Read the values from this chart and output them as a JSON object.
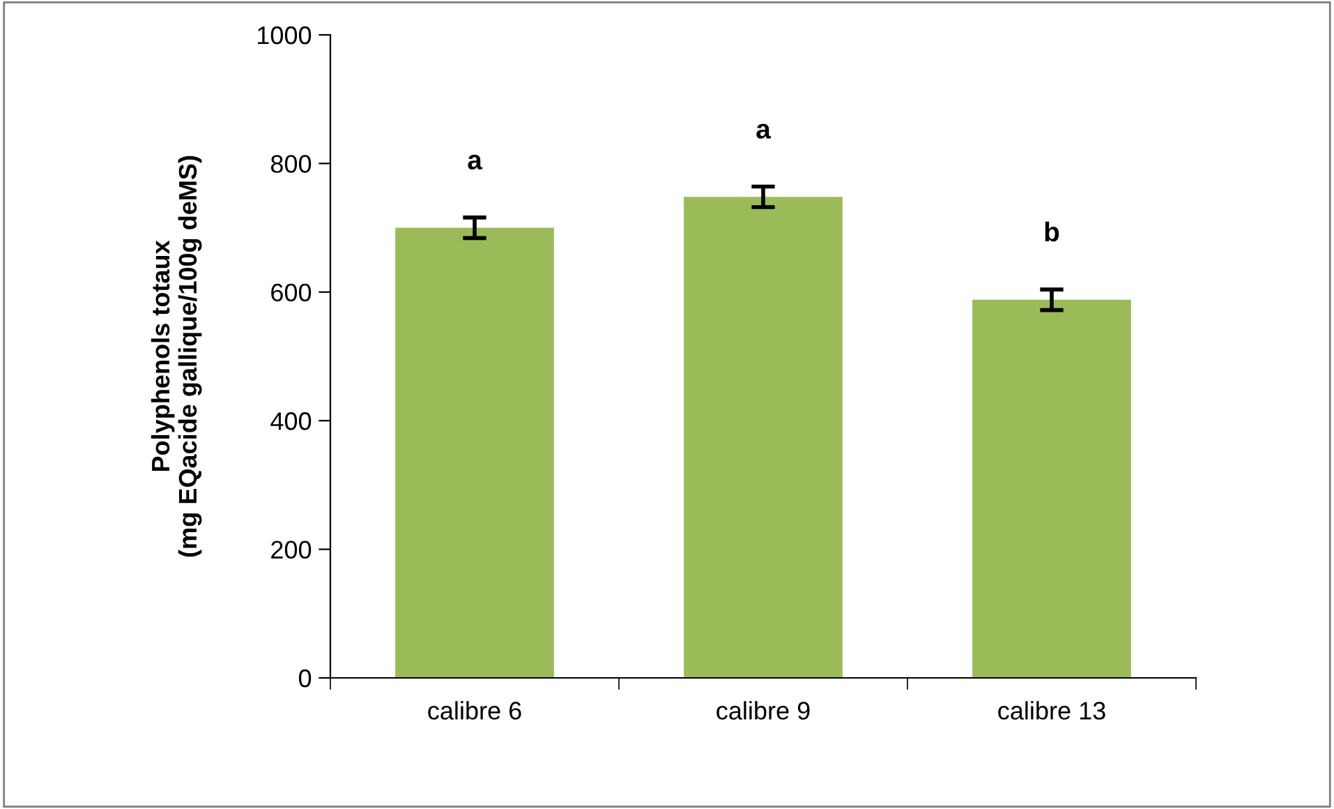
{
  "chart_data": {
    "type": "bar",
    "ylabel": "Polyphenols totaux\n(mg EQacide gallique/100g deMS)",
    "categories": [
      "calibre 6",
      "calibre 9",
      "calibre 13"
    ],
    "values": [
      700,
      748,
      588
    ],
    "errors": [
      16,
      16,
      16
    ],
    "color": "#9bbb59",
    "ylim": [
      0,
      1000
    ],
    "yticks": [
      0,
      200,
      400,
      600,
      800,
      1000
    ],
    "grid": false,
    "annotations": [
      "a",
      "a",
      "b"
    ]
  }
}
